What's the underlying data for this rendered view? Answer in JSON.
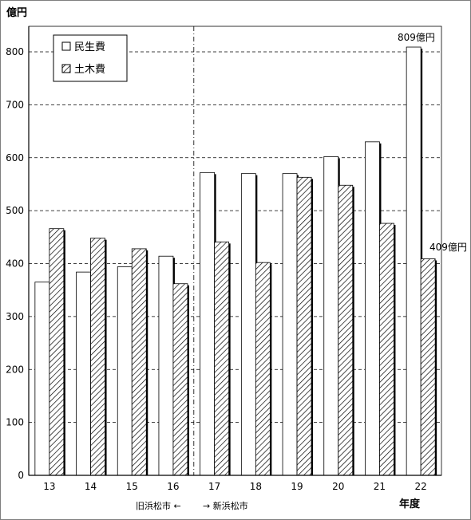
{
  "chart_data": {
    "type": "bar",
    "ylabel": "億円",
    "xlabel": "年度",
    "ylim": [
      0,
      800
    ],
    "yticks": [
      0,
      100,
      200,
      300,
      400,
      500,
      600,
      700,
      800
    ],
    "grid": true,
    "legend_position": "top-left",
    "categories": [
      "13",
      "14",
      "15",
      "16",
      "17",
      "18",
      "19",
      "20",
      "21",
      "22"
    ],
    "series": [
      {
        "name": "民生費",
        "pattern": "white",
        "values": [
          365,
          384,
          394,
          414,
          572,
          570,
          570,
          602,
          630,
          809
        ]
      },
      {
        "name": "土木費",
        "pattern": "hatched",
        "values": [
          466,
          448,
          428,
          362,
          441,
          402,
          563,
          548,
          476,
          409
        ]
      }
    ],
    "annotations": {
      "max_label": "809億円",
      "last_label": "409億円",
      "left_period": "旧浜松市 ←",
      "right_period": "→ 新浜松市"
    },
    "divider_after_category": "16",
    "colors": {
      "bar_fill": "#ffffff",
      "hatch": "#000000",
      "grid": "#000000",
      "frame": "#7f7f7f"
    }
  }
}
